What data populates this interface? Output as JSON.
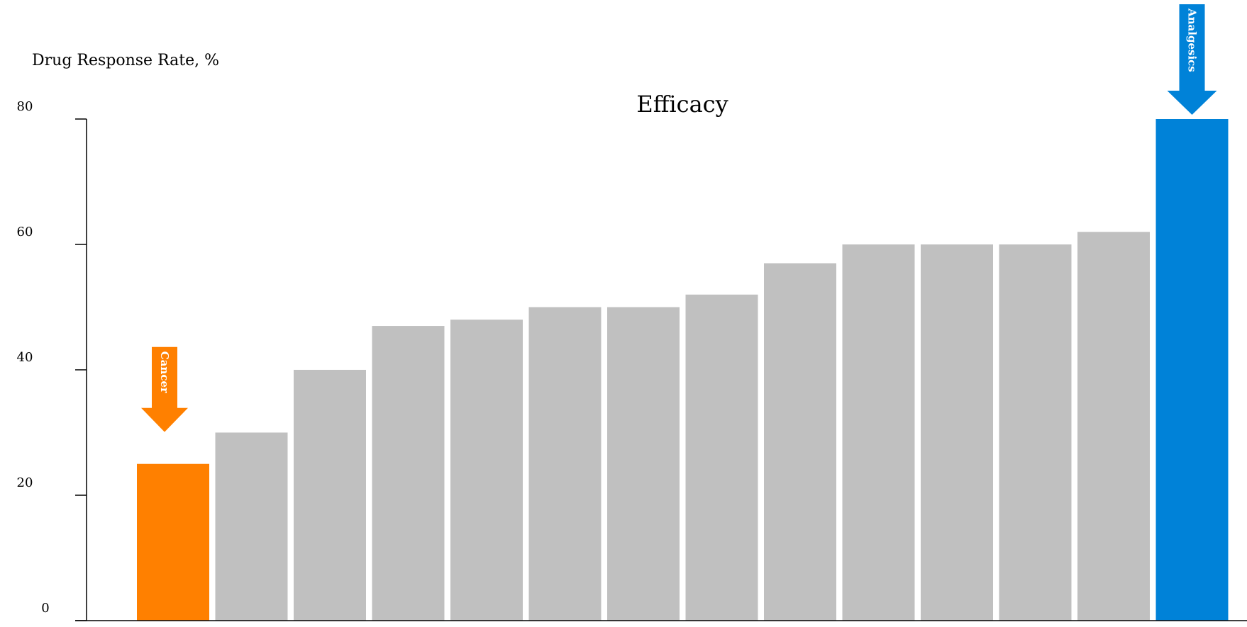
{
  "chart_data": {
    "type": "bar",
    "title": "Efficacy",
    "ylabel": "Drug Response Rate, %",
    "xlabel": "",
    "ylim": [
      0,
      80
    ],
    "yticks": [
      0,
      20,
      40,
      60,
      80
    ],
    "grid": false,
    "legend": "none",
    "values": [
      25,
      30,
      40,
      47,
      48,
      50,
      50,
      52,
      57,
      60,
      60,
      60,
      62,
      80
    ],
    "highlight": [
      {
        "index": 0,
        "label": "Cancer",
        "color": "#ff8000"
      },
      {
        "index": 13,
        "label": "Analgesics",
        "color": "#0082d8"
      }
    ],
    "default_color": "#c0c0c0"
  }
}
